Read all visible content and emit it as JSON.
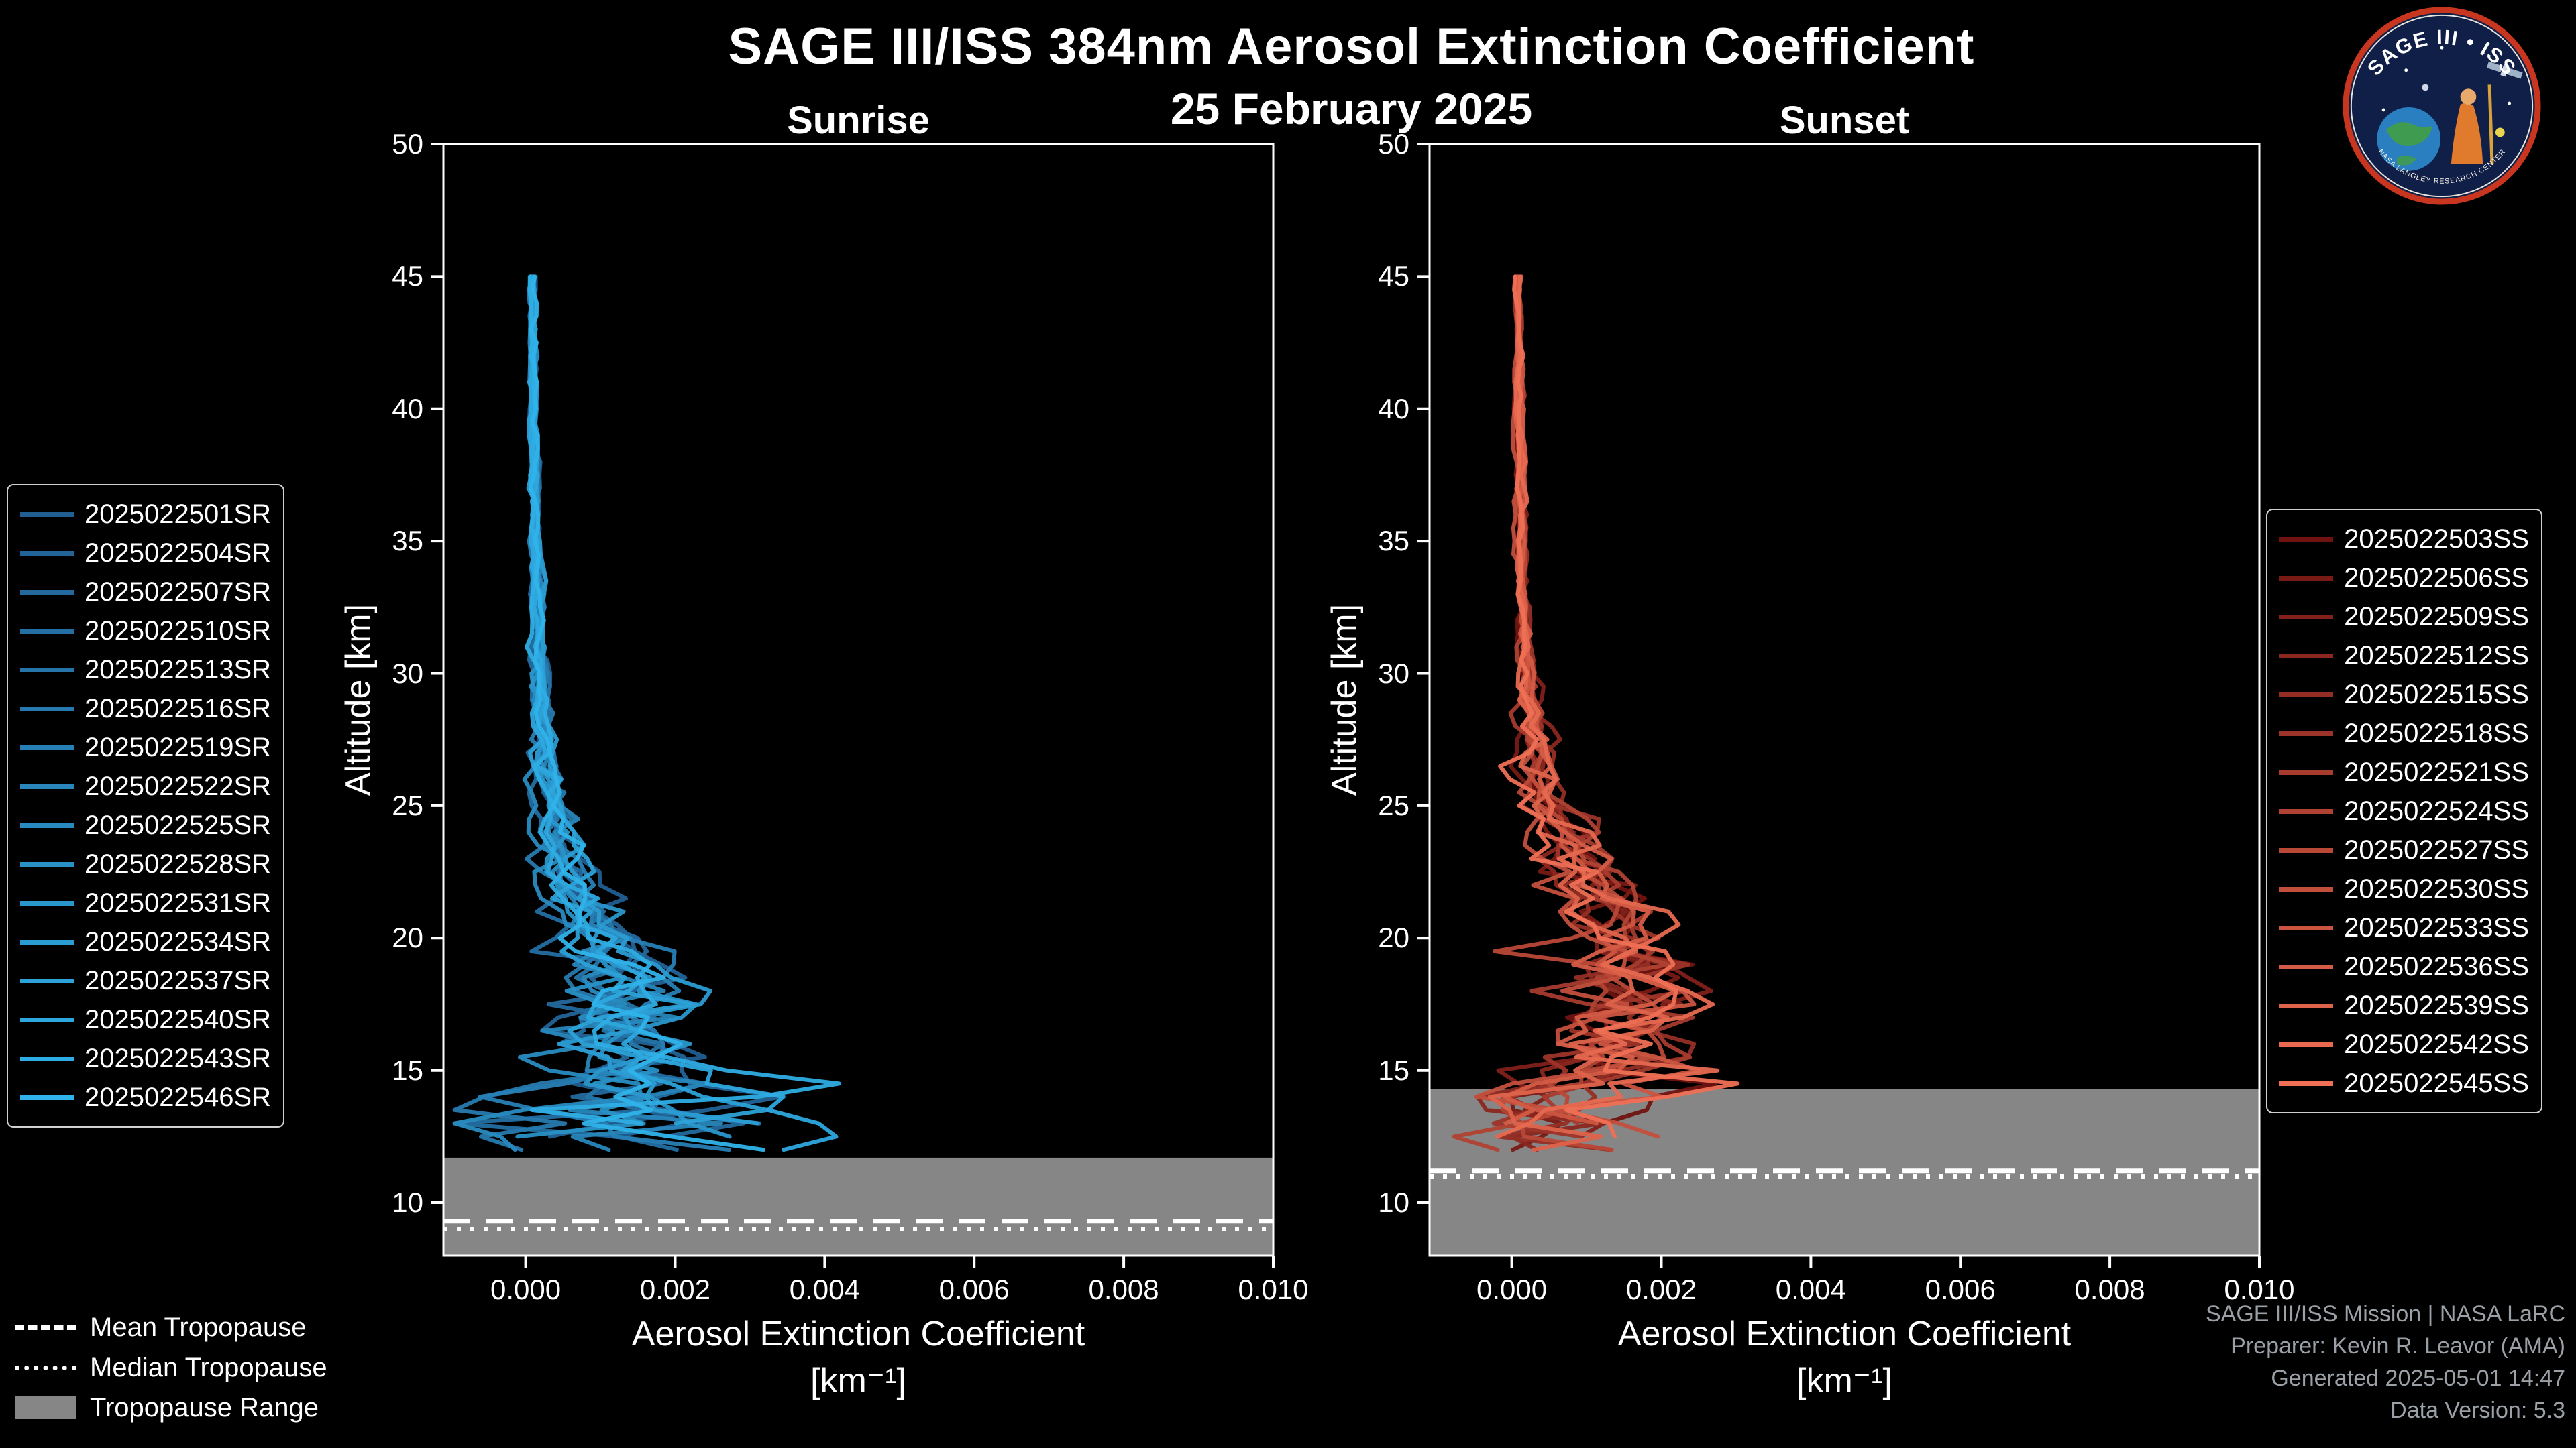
{
  "header": {
    "title": "SAGE III/ISS 384nm Aerosol Extinction Coefficient",
    "date": "25 February 2025"
  },
  "logo": {
    "title": "SAGE III • ISS",
    "ring_text": "NASA LANGLEY RESEARCH CENTER"
  },
  "tropopause_legend": {
    "mean_label": "Mean Tropopause",
    "median_label": "Median Tropopause",
    "range_label": "Tropopause Range"
  },
  "credits": {
    "line1": "SAGE III/ISS Mission | NASA LaRC",
    "line2": "Preparer: Kevin R. Leavor (AMA)",
    "line3": "Generated 2025-05-01 14:47",
    "line4": "Data Version: 5.3"
  },
  "styles": {
    "background": "#000000",
    "text_color": "#ffffff",
    "credits_color": "#9aa0a6",
    "tropopause_band_color": "#868686",
    "tropopause_line_color": "#ffffff",
    "plot_border_color": "#ffffff"
  },
  "chart_data": [
    {
      "type": "line",
      "panel": "sunrise",
      "title": "Sunrise",
      "xlabel": "Aerosol Extinction Coefficient",
      "xlabel_units": "[km⁻¹]",
      "ylabel": "Altitude [km]",
      "xlim": [
        -0.0011,
        0.01
      ],
      "ylim": [
        8,
        50
      ],
      "xtick_values": [
        0,
        0.002,
        0.004,
        0.006,
        0.008,
        0.01
      ],
      "xtick_labels": [
        "0.000",
        "0.002",
        "0.004",
        "0.006",
        "0.008",
        "0.010"
      ],
      "ytick_values": [
        50,
        45,
        40,
        35,
        30,
        25,
        20,
        15,
        10
      ],
      "series_names": [
        "2025022501SR",
        "2025022504SR",
        "2025022507SR",
        "2025022510SR",
        "2025022513SR",
        "2025022516SR",
        "2025022519SR",
        "2025022522SR",
        "2025022525SR",
        "2025022528SR",
        "2025022531SR",
        "2025022534SR",
        "2025022537SR",
        "2025022540SR",
        "2025022543SR",
        "2025022546SR"
      ],
      "color_start": "#215e91",
      "color_end": "#2fb3ea",
      "noise_seed": 20250225,
      "profile_top_km": 45,
      "profile_bottom_km_range": [
        11.5,
        12.8
      ],
      "mean_profile": {
        "alt": [
          45,
          40,
          35,
          30,
          27,
          25,
          23,
          21,
          20,
          19,
          18,
          17,
          16,
          15,
          14,
          13,
          12.5,
          12,
          11.5
        ],
        "val": [
          8e-05,
          0.0001,
          0.00012,
          0.00018,
          0.00025,
          0.00035,
          0.0005,
          0.0008,
          0.0009,
          0.001,
          0.0011,
          0.0012,
          0.0013,
          0.0014,
          0.0016,
          0.0017,
          0.0016,
          0.0013,
          0.0009
        ]
      },
      "spread_profile": {
        "alt": [
          45,
          35,
          30,
          25,
          22,
          20,
          18,
          16,
          14.5,
          13.5,
          12.5,
          11.5
        ],
        "val": [
          2e-05,
          3e-05,
          5e-05,
          0.0001,
          0.00018,
          0.00025,
          0.0004,
          0.0005,
          0.0007,
          0.001,
          0.0012,
          0.001
        ]
      },
      "tropopause": {
        "mean_km": 9.3,
        "median_km": 9.0,
        "range_top_km": 11.7,
        "range_bottom_km": 8
      }
    },
    {
      "type": "line",
      "panel": "sunset",
      "title": "Sunset",
      "xlabel": "Aerosol Extinction Coefficient",
      "xlabel_units": "[km⁻¹]",
      "ylabel": "Altitude [km]",
      "xlim": [
        -0.0011,
        0.01
      ],
      "ylim": [
        8,
        50
      ],
      "xtick_values": [
        0,
        0.002,
        0.004,
        0.006,
        0.008,
        0.01
      ],
      "xtick_labels": [
        "0.000",
        "0.002",
        "0.004",
        "0.006",
        "0.008",
        "0.010"
      ],
      "ytick_values": [
        50,
        45,
        40,
        35,
        30,
        25,
        20,
        15,
        10
      ],
      "series_names": [
        "2025022503SS",
        "2025022506SS",
        "2025022509SS",
        "2025022512SS",
        "2025022515SS",
        "2025022518SS",
        "2025022521SS",
        "2025022524SS",
        "2025022527SS",
        "2025022530SS",
        "2025022533SS",
        "2025022536SS",
        "2025022539SS",
        "2025022542SS",
        "2025022545SS"
      ],
      "color_start": "#701310",
      "color_end": "#ef7055",
      "noise_seed": 20250226,
      "profile_top_km": 45,
      "profile_bottom_km_range": [
        11.2,
        13.0
      ],
      "mean_profile": {
        "alt": [
          45,
          40,
          35,
          30,
          27,
          25,
          23,
          21,
          20,
          19,
          18,
          17,
          16,
          15,
          14,
          13,
          12,
          11.2
        ],
        "val": [
          8e-05,
          0.0001,
          0.00012,
          0.0002,
          0.0003,
          0.0005,
          0.0009,
          0.0013,
          0.0015,
          0.0017,
          0.0017,
          0.0015,
          0.0013,
          0.0012,
          0.001,
          0.0008,
          0.0006,
          0.0005
        ]
      },
      "spread_profile": {
        "alt": [
          45,
          35,
          30,
          25,
          22,
          20,
          18,
          16,
          14,
          13,
          12,
          11.2
        ],
        "val": [
          2e-05,
          3e-05,
          5e-05,
          0.00015,
          0.0003,
          0.0004,
          0.0005,
          0.0005,
          0.0007,
          0.0008,
          0.0008,
          0.0007
        ]
      },
      "tropopause": {
        "mean_km": 11.2,
        "median_km": 11.0,
        "range_top_km": 14.3,
        "range_bottom_km": 8
      }
    }
  ]
}
